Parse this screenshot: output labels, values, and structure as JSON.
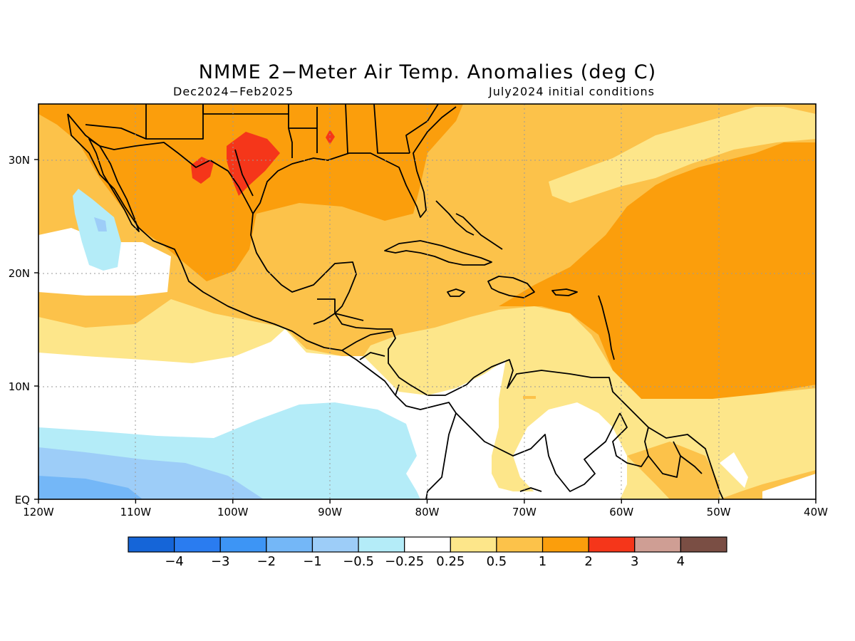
{
  "title": "NMME 2−Meter Air Temp. Anomalies (deg C)",
  "period": "Dec2024−Feb2025",
  "initial_conditions": "July2024 initial conditions",
  "lon_ticks": [
    "120W",
    "110W",
    "100W",
    "90W",
    "80W",
    "70W",
    "60W",
    "50W",
    "40W"
  ],
  "lat_ticks": [
    "EQ",
    "10N",
    "20N",
    "30N"
  ],
  "colorbar": {
    "colors": [
      "#1565d8",
      "#2a7cf0",
      "#3d95f5",
      "#74b7f7",
      "#9dcdf8",
      "#b4ecf8",
      "#ffffff",
      "#fde68a",
      "#fcc24a",
      "#fb9e0c",
      "#f5361a",
      "#cf9e94",
      "#7a4e44"
    ],
    "labels": [
      "−4",
      "−3",
      "−2",
      "−1",
      "−0.5",
      "−0.25",
      "0.25",
      "0.5",
      "1",
      "2",
      "3",
      "4"
    ]
  }
}
